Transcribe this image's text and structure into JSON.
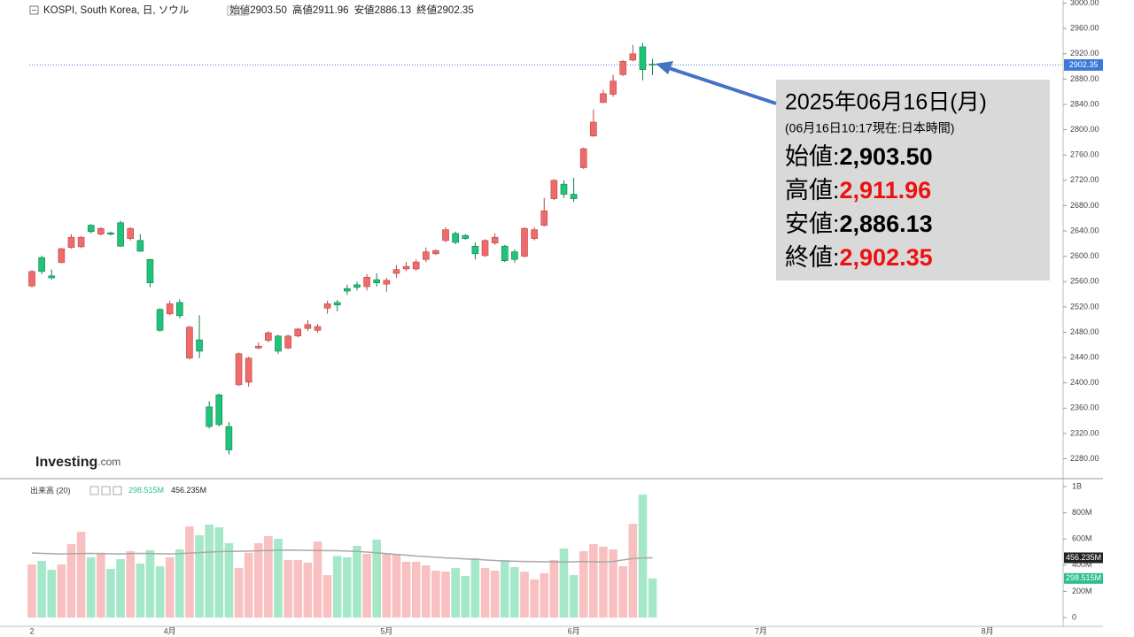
{
  "chart_data": [
    {
      "type": "candlestick",
      "title": "KOSPI, South Korea, 日, ソウル",
      "quote": [
        {
          "name": "始値",
          "value": {
            "value": 2903.5,
            "label": "2903.50"
          }
        },
        {
          "name": "高値",
          "value": 2911.96
        },
        {
          "name": "安値",
          "value": 2886.13
        },
        {
          "name": "終値",
          "value": 2902.35
        }
      ],
      "watermark": [
        "Investing",
        ".com"
      ],
      "categories": [
        "2",
        null,
        null,
        null,
        null,
        null,
        null,
        null,
        null,
        null,
        null,
        null,
        null,
        null,
        "4月",
        null,
        null,
        null,
        null,
        null,
        null,
        null,
        null,
        null,
        null,
        null,
        null,
        null,
        null,
        null,
        null,
        null,
        null,
        null,
        null,
        null,
        "5月",
        null,
        null,
        null,
        null,
        null,
        null,
        null,
        null,
        null,
        null,
        null,
        null,
        null,
        null,
        null,
        null,
        null,
        null,
        "6月",
        null,
        null,
        null,
        null,
        null,
        null,
        null,
        null,
        null,
        null,
        null,
        null,
        null,
        null,
        null,
        null,
        null,
        null,
        "7月",
        null,
        null,
        null,
        null,
        null,
        null,
        null,
        null,
        null,
        null,
        null,
        null,
        null,
        null,
        null,
        null,
        null,
        null,
        null,
        null,
        null,
        null,
        "8月"
      ],
      "open": [
        2553,
        2598,
        2569,
        2590,
        2614,
        2615,
        2649,
        2635,
        2637,
        2653,
        2628,
        2625,
        2595,
        2516,
        2509,
        2527,
        2439,
        2468,
        2362,
        2381,
        2331,
        2397,
        2401,
        2455,
        2467,
        2474,
        2455,
        2474,
        2486,
        2483,
        2518,
        2527,
        2549,
        2555,
        2552,
        2563,
        2556,
        2573,
        2580,
        2580,
        2595,
        2604,
        2625,
        2636,
        2633,
        2616,
        2601,
        2621,
        2616,
        2607,
        2600,
        2628,
        2649,
        2691,
        2714,
        2698,
        2740,
        2790,
        2843,
        2856,
        2887,
        2910,
        2931,
        2903.5,
        null,
        null,
        null,
        null,
        null,
        null,
        null,
        null,
        null,
        null,
        null,
        null,
        null,
        null,
        null,
        null,
        null,
        null,
        null,
        null,
        null,
        null,
        null,
        null,
        null,
        null,
        null,
        null,
        null,
        null,
        null,
        null,
        null,
        null
      ],
      "high": [
        2578,
        2601,
        2579,
        2613,
        2635,
        2632,
        2651,
        2646,
        2639,
        2656,
        2646,
        2635,
        2596,
        2518,
        2530,
        2532,
        2490,
        2507,
        2371,
        2383,
        2338,
        2448,
        2441,
        2464,
        2482,
        2476,
        2476,
        2487,
        2499,
        2493,
        2530,
        2531,
        2555,
        2560,
        2572,
        2573,
        2566,
        2586,
        2591,
        2595,
        2614,
        2611,
        2646,
        2639,
        2635,
        2622,
        2627,
        2636,
        2618,
        2611,
        2646,
        2646,
        2692,
        2722,
        2720,
        2724,
        2772,
        2832,
        2863,
        2887,
        2910,
        2934,
        2937,
        2911.96,
        null,
        null,
        null,
        null,
        null,
        null,
        null,
        null,
        null,
        null,
        null,
        null,
        null,
        null,
        null,
        null,
        null,
        null,
        null,
        null,
        null,
        null,
        null,
        null,
        null,
        null,
        null,
        null,
        null,
        null,
        null,
        null,
        null,
        null
      ],
      "low": [
        2551,
        2572,
        2563,
        2589,
        2612,
        2613,
        2636,
        2633,
        2633,
        2615,
        2625,
        2607,
        2551,
        2481,
        2507,
        2502,
        2437,
        2439,
        2328,
        2331,
        2287,
        2395,
        2394,
        2453,
        2464,
        2446,
        2453,
        2472,
        2482,
        2479,
        2509,
        2513,
        2539,
        2546,
        2546,
        2552,
        2544,
        2566,
        2577,
        2577,
        2591,
        2602,
        2622,
        2619,
        2626,
        2595,
        2599,
        2618,
        2591,
        2590,
        2598,
        2625,
        2647,
        2689,
        2692,
        2686,
        2738,
        2789,
        2842,
        2852,
        2885,
        2908,
        2878,
        2886.13,
        null,
        null,
        null,
        null,
        null,
        null,
        null,
        null,
        null,
        null,
        null,
        null,
        null,
        null,
        null,
        null,
        null,
        null,
        null,
        null,
        null,
        null,
        null,
        null,
        null,
        null,
        null,
        null,
        null,
        null,
        null,
        null,
        null,
        null
      ],
      "close": [
        2576,
        2576,
        2566,
        2612,
        2630,
        2630,
        2639,
        2644,
        2635,
        2616,
        2644,
        2608,
        2558,
        2483,
        2525,
        2506,
        2488,
        2450,
        2331,
        2334,
        2294,
        2446,
        2439,
        2458,
        2479,
        2450,
        2474,
        2485,
        2492,
        2489,
        2525,
        2523,
        2545,
        2551,
        2567,
        2558,
        2562,
        2579,
        2584,
        2591,
        2607,
        2609,
        2642,
        2622,
        2628,
        2604,
        2625,
        2630,
        2593,
        2595,
        2644,
        2642,
        2672,
        2720,
        2698,
        2691,
        2770,
        2812,
        2857,
        2877,
        2908,
        2920,
        2895,
        2902.35,
        null,
        null,
        null,
        null,
        null,
        null,
        null,
        null,
        null,
        null,
        null,
        null,
        null,
        null,
        null,
        null,
        null,
        null,
        null,
        null,
        null,
        null,
        null,
        null,
        null,
        null,
        null,
        null,
        null,
        null,
        null,
        null,
        null,
        null
      ],
      "up_color": "#ef6b6b",
      "up_edge": "#b84444",
      "down_color": "#1fc47a",
      "down_edge": "#0e7f4b",
      "last_price": 2902.35,
      "last_price_color": "#3c78d8",
      "ylim": [
        2250,
        3005
      ],
      "yticks": [
        {
          "value": 3000,
          "label": "3000.00"
        },
        {
          "value": 2960,
          "label": "2960.00"
        },
        {
          "value": 2920,
          "label": "2920.00"
        },
        {
          "value": 2880,
          "label": "2880.00"
        },
        {
          "value": 2840,
          "label": "2840.00"
        },
        {
          "value": 2800,
          "label": "2800.00"
        },
        {
          "value": 2760,
          "label": "2760.00"
        },
        {
          "value": 2720,
          "label": "2720.00"
        },
        {
          "value": 2680,
          "label": "2680.00"
        },
        {
          "value": 2640,
          "label": "2640.00"
        },
        {
          "value": 2600,
          "label": "2600.00"
        },
        {
          "value": 2560,
          "label": "2560.00"
        },
        {
          "value": 2520,
          "label": "2520.00"
        },
        {
          "value": 2480,
          "label": "2480.00"
        },
        {
          "value": 2440,
          "label": "2440.00"
        },
        {
          "value": 2400,
          "label": "2400.00"
        },
        {
          "value": 2360,
          "label": "2360.00"
        },
        {
          "value": 2320,
          "label": "2320.00"
        },
        {
          "value": 2280,
          "label": "2280.00"
        }
      ],
      "grid": false
    },
    {
      "type": "volume",
      "title": "出来高 (20)",
      "up_color": "#f8c0c0",
      "down_color": "#a5e8c9",
      "series": [
        {
          "values": [
            405,
            432,
            365,
            405,
            560,
            655,
            460,
            495,
            372,
            446,
            507,
            412,
            514,
            392,
            460,
            520,
            696,
            628,
            710,
            689,
            568,
            378,
            495,
            568,
            622,
            601,
            439,
            439,
            419,
            581,
            324,
            470,
            460,
            547,
            486,
            595,
            486,
            486,
            426,
            426,
            399,
            358,
            351,
            378,
            318,
            453,
            378,
            358,
            439,
            385,
            350,
            291,
            338,
            439,
            527,
            324,
            507,
            561,
            541,
            520,
            392,
            716,
            939,
            298.515
          ],
          "last_label": {
            "value": 298.515,
            "label": "298.515M"
          },
          "color": "#2dbf8a"
        },
        {
          "values": [
            493,
            490,
            488,
            486,
            487,
            489,
            490,
            488,
            487,
            486,
            488,
            490,
            489,
            487,
            486,
            488,
            492,
            496,
            500,
            503,
            505,
            506,
            508,
            510,
            512,
            514,
            515,
            514,
            513,
            512,
            511,
            510,
            508,
            505,
            500,
            494,
            488,
            482,
            476,
            470,
            465,
            460,
            455,
            452,
            448,
            445,
            440,
            436,
            432,
            430,
            428,
            427,
            426,
            425,
            425,
            426,
            428,
            426,
            425,
            428,
            440,
            450,
            455,
            456.235
          ],
          "last_label": {
            "value": 456.235,
            "label": "456.235M"
          },
          "color": "#a8a8a8"
        }
      ],
      "ylim": [
        0,
        1000
      ],
      "yticks": [
        0,
        {
          "value": 200,
          "label": "200M"
        },
        {
          "value": 400,
          "label": "400M"
        },
        {
          "value": 600,
          "label": "600M"
        },
        {
          "value": 800,
          "label": "800M"
        },
        {
          "value": 1000,
          "label": "1B"
        }
      ]
    }
  ],
  "annotation": {
    "date": "2025年06月16日(月)",
    "time": "(06月16日10:17現在:日本時間)",
    "rows": [
      {
        "name": "始値:",
        "value": {
          "value": 2903.5,
          "label": "2,903.50"
        },
        "color": "#000000"
      },
      {
        "name": "高値:",
        "value": {
          "value": 2911.96,
          "label": "2,911.96"
        },
        "color": "#ee1111"
      },
      {
        "name": "安値:",
        "value": {
          "value": 2886.13,
          "label": "2,886.13"
        },
        "color": "#000000"
      },
      {
        "name": "終値:",
        "value": {
          "value": 2902.35,
          "label": "2,902.35"
        },
        "color": "#ee1111"
      }
    ]
  }
}
